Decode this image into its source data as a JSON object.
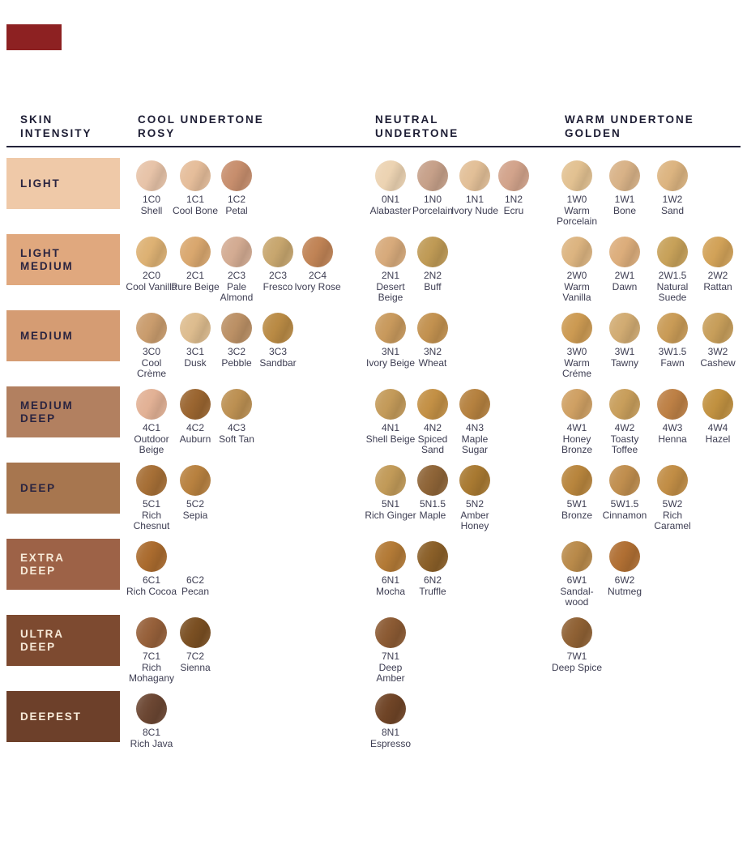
{
  "brand_mark": {
    "color": "#8d2122"
  },
  "chart_data": {
    "type": "table",
    "title": "Foundation shade chart by skin intensity and undertone",
    "columns": {
      "intensity": "SKIN\nINTENSITY",
      "cool": "COOL UNDERTONE\nROSY",
      "neutral": "NEUTRAL\nUNDERTONE",
      "warm": "WARM UNDERTONE\nGOLDEN"
    },
    "rows": [
      {
        "intensity": {
          "label": "LIGHT",
          "color": "#efc9a8",
          "text_color": "#2a2440"
        },
        "cool": [
          {
            "code": "1C0",
            "name": "Shell",
            "color": "#e7c3a8"
          },
          {
            "code": "1C1",
            "name": "Cool Bone",
            "color": "#e5bd9a"
          },
          {
            "code": "1C2",
            "name": "Petal",
            "color": "#c78e6d"
          }
        ],
        "neutral": [
          {
            "code": "0N1",
            "name": "Alabaster",
            "color": "#ecd3b2"
          },
          {
            "code": "1N0",
            "name": "Porcelain",
            "color": "#c6a089"
          },
          {
            "code": "1N1",
            "name": "Ivory Nude",
            "color": "#e2bf97"
          },
          {
            "code": "1N2",
            "name": "Ecru",
            "color": "#d2a38b"
          }
        ],
        "warm": [
          {
            "code": "1W0",
            "name": "Warm Porcelain",
            "color": "#e2c191"
          },
          {
            "code": "1W1",
            "name": "Bone",
            "color": "#d8b287"
          },
          {
            "code": "1W2",
            "name": "Sand",
            "color": "#dcb480"
          }
        ]
      },
      {
        "intensity": {
          "label": "LIGHT\nMEDIUM",
          "color": "#e0a87e",
          "text_color": "#2a2440"
        },
        "cool": [
          {
            "code": "2C0",
            "name": "Cool Vanilla",
            "color": "#ddb173"
          },
          {
            "code": "2C1",
            "name": "Pure Beige",
            "color": "#d9a76e"
          },
          {
            "code": "2C3",
            "name": "Pale Almond",
            "color": "#d3ab92"
          },
          {
            "code": "2C3",
            "name": "Fresco",
            "color": "#c7a66e"
          },
          {
            "code": "2C4",
            "name": "Ivory Rose",
            "color": "#c08355"
          }
        ],
        "neutral": [
          {
            "code": "2N1",
            "name": "Desert Beige",
            "color": "#d7aa7b"
          },
          {
            "code": "2N2",
            "name": "Buff",
            "color": "#bf9a55"
          }
        ],
        "warm": [
          {
            "code": "2W0",
            "name": "Warm Vanilla",
            "color": "#dcb480"
          },
          {
            "code": "2W1",
            "name": "Dawn",
            "color": "#dcad7b"
          },
          {
            "code": "2W1.5",
            "name": "Natural Suede",
            "color": "#c7a159"
          },
          {
            "code": "2W2",
            "name": "Rattan",
            "color": "#d2a258"
          }
        ]
      },
      {
        "intensity": {
          "label": "MEDIUM",
          "color": "#d59c73",
          "text_color": "#2a2440"
        },
        "cool": [
          {
            "code": "3C0",
            "name": "Cool Crème",
            "color": "#c99c6d"
          },
          {
            "code": "3C1",
            "name": "Dusk",
            "color": "#ddbc8e"
          },
          {
            "code": "3C2",
            "name": "Pebble",
            "color": "#bb9065"
          },
          {
            "code": "3C3",
            "name": "Sandbar",
            "color": "#b98a44"
          }
        ],
        "neutral": [
          {
            "code": "3N1",
            "name": "Ivory Beige",
            "color": "#c8995c"
          },
          {
            "code": "3N2",
            "name": "Wheat",
            "color": "#c2914f"
          }
        ],
        "warm": [
          {
            "code": "3W0",
            "name": "Warm Créme",
            "color": "#cc9a52"
          },
          {
            "code": "3W1",
            "name": "Tawny",
            "color": "#d1ab72"
          },
          {
            "code": "3W1.5",
            "name": "Fawn",
            "color": "#c99b56"
          },
          {
            "code": "3W2",
            "name": "Cashew",
            "color": "#c79e5a"
          }
        ]
      },
      {
        "intensity": {
          "label": "MEDIUM\nDEEP",
          "color": "#b28060",
          "text_color": "#2a2440"
        },
        "cool": [
          {
            "code": "4C1",
            "name": "Outdoor Beige",
            "color": "#e2b195"
          },
          {
            "code": "4C2",
            "name": "Auburn",
            "color": "#9a6530"
          },
          {
            "code": "4C3",
            "name": "Soft Tan",
            "color": "#bc9052"
          }
        ],
        "neutral": [
          {
            "code": "4N1",
            "name": "Shell Beige",
            "color": "#c39a59"
          },
          {
            "code": "4N2",
            "name": "Spiced Sand",
            "color": "#c39045"
          },
          {
            "code": "4N3",
            "name": "Maple Sugar",
            "color": "#b5813f"
          }
        ],
        "warm": [
          {
            "code": "4W1",
            "name": "Honey Bronze",
            "color": "#cfa063"
          },
          {
            "code": "4W2",
            "name": "Toasty Toffee",
            "color": "#c89e5b"
          },
          {
            "code": "4W3",
            "name": "Henna",
            "color": "#bd8045"
          },
          {
            "code": "4W4",
            "name": "Hazel",
            "color": "#c19140"
          }
        ]
      },
      {
        "intensity": {
          "label": "DEEP",
          "color": "#a7764f",
          "text_color": "#2a2440"
        },
        "cool": [
          {
            "code": "5C1",
            "name": "Rich Chesnut",
            "color": "#a66f36"
          },
          {
            "code": "5C2",
            "name": "Sepia",
            "color": "#b8813f"
          }
        ],
        "neutral": [
          {
            "code": "5N1",
            "name": "Rich Ginger",
            "color": "#c19a58"
          },
          {
            "code": "5N1.5",
            "name": "Maple",
            "color": "#8e6437"
          },
          {
            "code": "5N2",
            "name": "Amber Honey",
            "color": "#a87931"
          }
        ],
        "warm": [
          {
            "code": "5W1",
            "name": "Bronze",
            "color": "#b8853d"
          },
          {
            "code": "5W1.5",
            "name": "Cinnamon",
            "color": "#c08e4e"
          },
          {
            "code": "5W2",
            "name": "Rich Caramel",
            "color": "#c18d45"
          }
        ]
      },
      {
        "intensity": {
          "label": "EXTRA\nDEEP",
          "color": "#9d6247",
          "text_color": "#f7ead8"
        },
        "cool": [
          {
            "code": "6C1",
            "name": "Rich Cocoa",
            "color": "#aa6b2e"
          },
          {
            "code": "6C2",
            "name": "Pecan",
            "color": null
          }
        ],
        "neutral": [
          {
            "code": "6N1",
            "name": "Mocha",
            "color": "#b37a36"
          },
          {
            "code": "6N2",
            "name": "Truffle",
            "color": "#8a5f28"
          }
        ],
        "warm": [
          {
            "code": "6W1",
            "name": "Sandal-wood",
            "color": "#b98a4a"
          },
          {
            "code": "6W2",
            "name": "Nutmeg",
            "color": "#b06f33"
          }
        ]
      },
      {
        "intensity": {
          "label": "ULTRA\nDEEP",
          "color": "#7d4a30",
          "text_color": "#f7ead8"
        },
        "cool": [
          {
            "code": "7C1",
            "name": "Rich Mohagany",
            "color": "#96603a"
          },
          {
            "code": "7C2",
            "name": "Sienna",
            "color": "#7a4f22"
          }
        ],
        "neutral": [
          {
            "code": "7N1",
            "name": "Deep Amber",
            "color": "#8b5a33"
          }
        ],
        "warm": [
          {
            "code": "7W1",
            "name": "Deep Spice",
            "color": "#8f6134"
          }
        ]
      },
      {
        "intensity": {
          "label": "DEEPEST",
          "color": "#6d402a",
          "text_color": "#f7ead8"
        },
        "cool": [
          {
            "code": "8C1",
            "name": "Rich Java",
            "color": "#6b4632"
          }
        ],
        "neutral": [
          {
            "code": "8N1",
            "name": "Espresso",
            "color": "#6f4426"
          }
        ],
        "warm": []
      }
    ]
  }
}
